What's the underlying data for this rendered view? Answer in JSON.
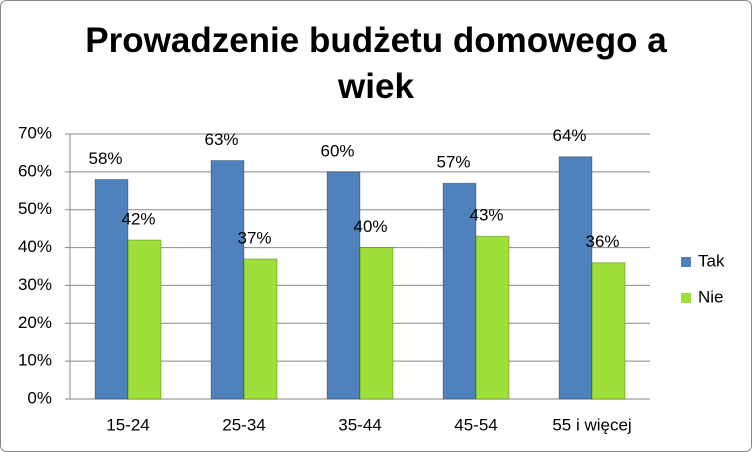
{
  "chart_data": {
    "type": "bar",
    "title": "Prowadzenie budżetu domowego a wiek",
    "categories": [
      "15-24",
      "25-34",
      "35-44",
      "45-54",
      "55 i więcej"
    ],
    "series": [
      {
        "name": "Tak",
        "color": "#4f81bd",
        "values": [
          58,
          63,
          60,
          57,
          64
        ],
        "value_labels": [
          "58%",
          "63%",
          "60%",
          "57%",
          "64%"
        ]
      },
      {
        "name": "Nie",
        "color": "#9de03a",
        "values": [
          42,
          37,
          40,
          43,
          36
        ],
        "value_labels": [
          "42%",
          "37%",
          "40%",
          "43%",
          "36%"
        ]
      }
    ],
    "ylim": [
      0,
      70
    ],
    "yticks": [
      {
        "value": 0,
        "label": "0%"
      },
      {
        "value": 10,
        "label": "10%"
      },
      {
        "value": 20,
        "label": "20%"
      },
      {
        "value": 30,
        "label": "30%"
      },
      {
        "value": 40,
        "label": "40%"
      },
      {
        "value": 50,
        "label": "50%"
      },
      {
        "value": 60,
        "label": "60%"
      },
      {
        "value": 70,
        "label": "70%"
      }
    ],
    "grid": true,
    "legend": "right"
  }
}
